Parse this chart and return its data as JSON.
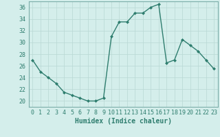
{
  "x": [
    0,
    1,
    2,
    3,
    4,
    5,
    6,
    7,
    8,
    9,
    10,
    11,
    12,
    13,
    14,
    15,
    16,
    17,
    18,
    19,
    20,
    21,
    22,
    23
  ],
  "y": [
    27,
    25,
    24,
    23,
    21.5,
    21,
    20.5,
    20,
    20,
    20.5,
    31,
    33.5,
    33.5,
    35,
    35,
    36,
    36.5,
    26.5,
    27,
    30.5,
    29.5,
    28.5,
    27,
    25.5
  ],
  "line_color": "#2E7D6E",
  "marker": "D",
  "marker_size": 2,
  "bg_color": "#D4EEEB",
  "grid_color": "#B8D8D4",
  "xlabel": "Humidex (Indice chaleur)",
  "xlim": [
    -0.5,
    23.5
  ],
  "ylim": [
    19,
    37
  ],
  "yticks": [
    20,
    22,
    24,
    26,
    28,
    30,
    32,
    34,
    36
  ],
  "xticks": [
    0,
    1,
    2,
    3,
    4,
    5,
    6,
    7,
    8,
    9,
    10,
    11,
    12,
    13,
    14,
    15,
    16,
    17,
    18,
    19,
    20,
    21,
    22,
    23
  ],
  "tick_label_fontsize": 6,
  "xlabel_fontsize": 7,
  "line_width": 1.0,
  "spine_color": "#7AADA8"
}
